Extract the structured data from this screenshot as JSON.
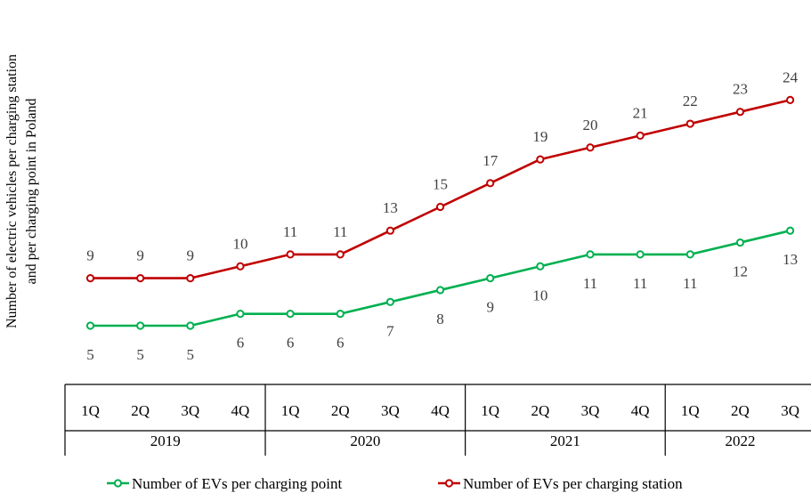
{
  "chart_data": {
    "type": "line",
    "ylabel_lines": [
      "Number of electric vehicles per charging station",
      "and per charging point in Poland"
    ],
    "categories": [
      "1Q",
      "2Q",
      "3Q",
      "4Q",
      "1Q",
      "2Q",
      "3Q",
      "4Q",
      "1Q",
      "2Q",
      "3Q",
      "4Q",
      "1Q",
      "2Q",
      "3Q"
    ],
    "years": [
      {
        "label": "2019",
        "span": 4
      },
      {
        "label": "2020",
        "span": 4
      },
      {
        "label": "2021",
        "span": 4
      },
      {
        "label": "2022",
        "span": 3
      }
    ],
    "series": [
      {
        "name": "Number of EVs per charging point",
        "color": "#00b050",
        "values": [
          5,
          5,
          5,
          6,
          6,
          6,
          7,
          8,
          9,
          10,
          11,
          11,
          11,
          12,
          13
        ],
        "label_position": "below"
      },
      {
        "name": "Number of EVs per charging station",
        "color": "#c00000",
        "values": [
          9,
          9,
          9,
          10,
          11,
          11,
          13,
          15,
          17,
          19,
          20,
          21,
          22,
          23,
          24
        ],
        "label_position": "above"
      }
    ],
    "grid": false,
    "legend_position": "bottom"
  }
}
